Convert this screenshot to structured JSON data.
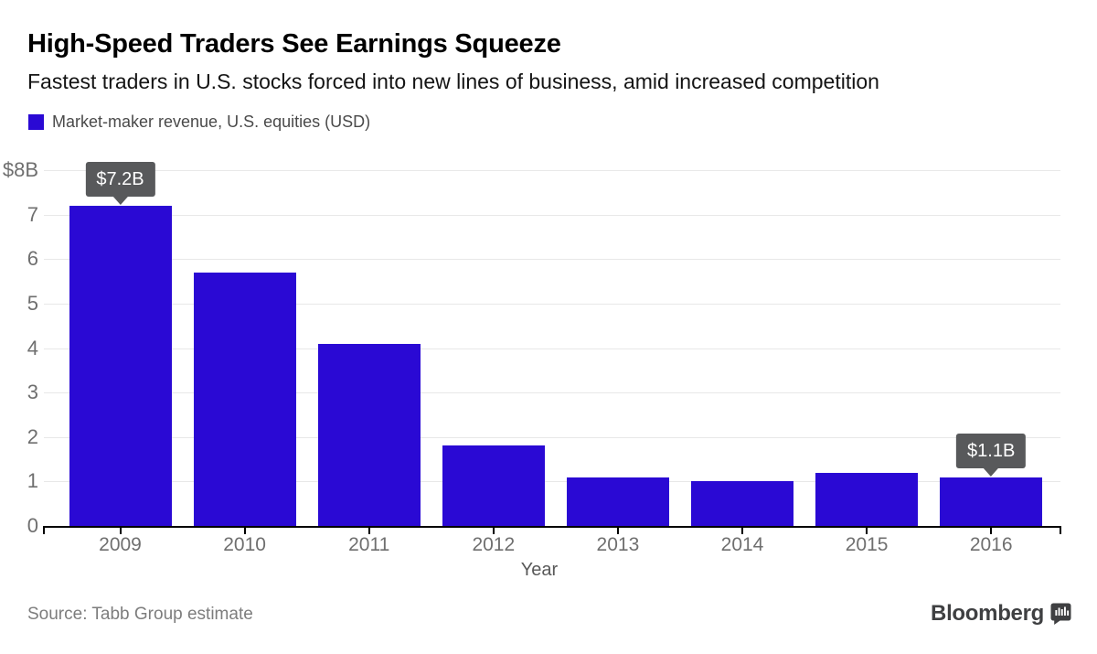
{
  "header": {
    "title": "High-Speed Traders See Earnings Squeeze",
    "subtitle": "Fastest traders in U.S. stocks forced into new lines of business, amid increased competition"
  },
  "legend": {
    "label": "Market-maker revenue, U.S. equities (USD)",
    "swatch_color": "#2a09d4"
  },
  "chart_data": {
    "type": "bar",
    "title": "Market-maker revenue, U.S. equities (USD)",
    "categories": [
      "2009",
      "2010",
      "2011",
      "2012",
      "2013",
      "2014",
      "2015",
      "2016"
    ],
    "values": [
      7.2,
      5.7,
      4.1,
      1.8,
      1.1,
      1.0,
      1.2,
      1.1
    ],
    "xlabel": "Year",
    "ylabel": "",
    "ylim": [
      0,
      8
    ],
    "ytick_labels": [
      "0",
      "1",
      "2",
      "3",
      "4",
      "5",
      "6",
      "7",
      "$8B"
    ],
    "grid": true,
    "legend_position": "top-left",
    "bar_color": "#2a09d4",
    "annotations": [
      {
        "category": "2009",
        "index": 0,
        "label": "$7.2B"
      },
      {
        "category": "2016",
        "index": 7,
        "label": "$1.1B"
      }
    ]
  },
  "footer": {
    "source": "Source: Tabb Group estimate",
    "brand": "Bloomberg"
  },
  "colors": {
    "bar": "#2a09d4",
    "tooltip_bg": "#58595b",
    "tooltip_text": "#ffffff",
    "gridline": "#e8e8e8",
    "axis_line": "#000000",
    "axis_label": "#6f6f6f",
    "source_text": "#7d7d7d",
    "brand_text": "#3f4042"
  }
}
